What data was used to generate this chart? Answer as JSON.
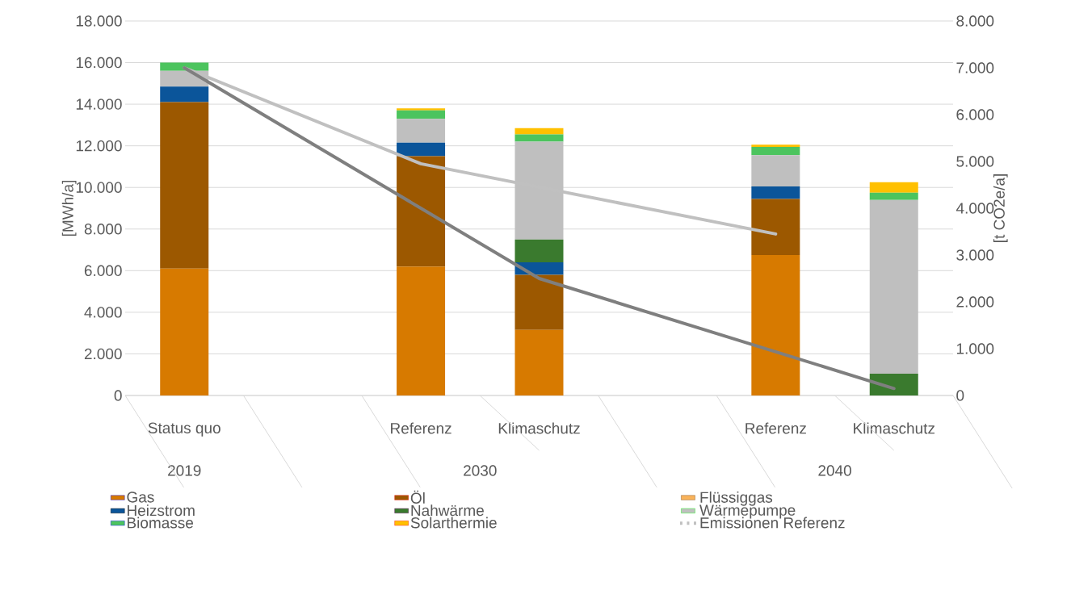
{
  "chart_data": {
    "type": "bar",
    "stacked": true,
    "ylabel": "[MWh/a]",
    "y2label": "[t CO2e/a]",
    "categories": [
      "Status quo",
      null,
      "Referenz",
      "Klimaschutz",
      null,
      "Referenz",
      "Klimaschutz"
    ],
    "annotations": [
      "2019",
      "2030",
      "2040"
    ],
    "series": [
      {
        "name": "Gas",
        "color": "#d77a00",
        "values": [
          6100,
          null,
          6200,
          3150,
          null,
          6750,
          0
        ]
      },
      {
        "name": "Öl",
        "color": "#9c5800",
        "values": [
          8000,
          null,
          5300,
          2650,
          null,
          2700,
          0
        ]
      },
      {
        "name": "Flüssiggas",
        "color": "#f9b35a",
        "values": [
          0,
          null,
          0,
          0,
          null,
          0,
          0
        ]
      },
      {
        "name": "Heizstrom",
        "color": "#0b559a",
        "values": [
          750,
          null,
          650,
          600,
          null,
          600,
          0
        ]
      },
      {
        "name": "Nahwärme",
        "color": "#3a7a2e",
        "values": [
          0,
          null,
          0,
          1100,
          null,
          0,
          1050
        ]
      },
      {
        "name": "Wärmepumpe",
        "color": "#bfbfbf",
        "values": [
          750,
          null,
          1150,
          4700,
          null,
          1500,
          8350
        ]
      },
      {
        "name": "Biomasse",
        "color": "#4cc45e",
        "values": [
          400,
          null,
          400,
          350,
          null,
          400,
          350
        ]
      },
      {
        "name": "Solarthermie",
        "color": "#ffc000",
        "values": [
          0,
          null,
          100,
          300,
          null,
          100,
          500
        ]
      },
      {
        "name": "Emissionen Referenz",
        "type": "line",
        "axis": "y2",
        "color": "#c0c0c0",
        "values": [
          7000,
          null,
          4950,
          null,
          null,
          3450,
          null
        ]
      },
      {
        "type": "line",
        "axis": "y2",
        "color": "#7f7f7f",
        "values": [
          7000,
          null,
          null,
          2500,
          null,
          null,
          150
        ]
      }
    ],
    "ylim": [
      0,
      18000
    ],
    "yticks": [
      0,
      {
        "value": 2000,
        "label": "2.000"
      },
      {
        "value": 4000,
        "label": "4.000"
      },
      {
        "value": 6000,
        "label": "6.000"
      },
      {
        "value": 8000,
        "label": "8.000"
      },
      {
        "value": 10000,
        "label": "10.000"
      },
      {
        "value": 12000,
        "label": "12.000"
      },
      {
        "value": 14000,
        "label": "14.000"
      },
      {
        "value": 16000,
        "label": "16.000"
      },
      {
        "value": 18000,
        "label": "18.000"
      }
    ],
    "y2lim": [
      0,
      8000
    ],
    "y2ticks": [
      0,
      {
        "value": 1000,
        "label": "1.000"
      },
      {
        "value": 2000,
        "label": "2.000"
      },
      {
        "value": 3000,
        "label": "3.000"
      },
      {
        "value": 4000,
        "label": "4.000"
      },
      {
        "value": 5000,
        "label": "5.000"
      },
      {
        "value": 6000,
        "label": "6.000"
      },
      {
        "value": 7000,
        "label": "7.000"
      },
      {
        "value": 8000,
        "label": "8.000"
      }
    ],
    "grid": "y",
    "legend": "bottom",
    "line_style": "solid",
    "marker": "none"
  }
}
